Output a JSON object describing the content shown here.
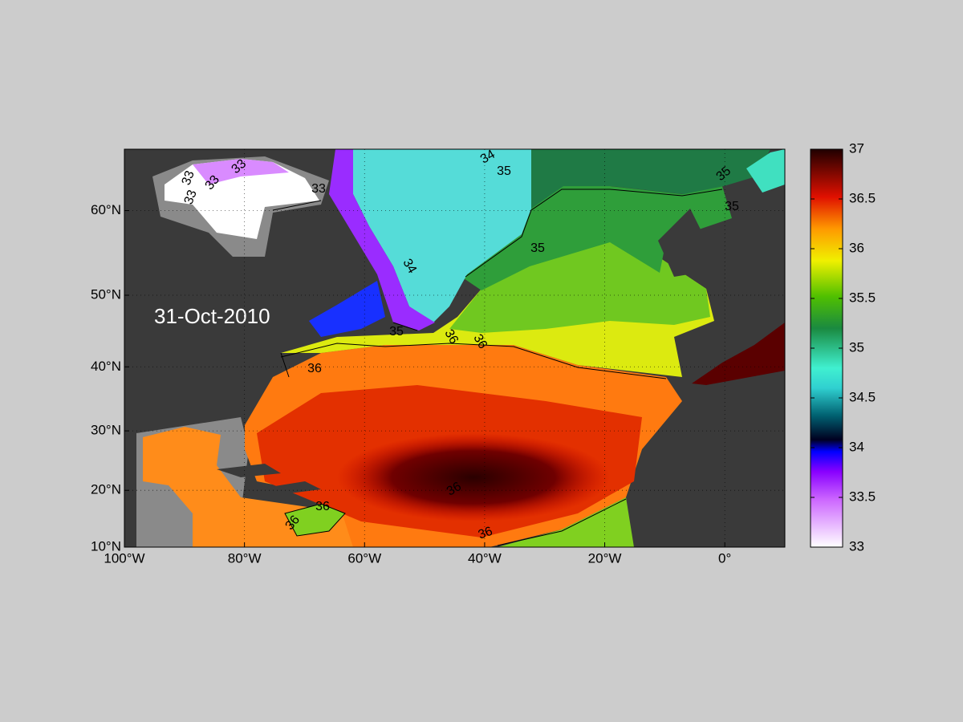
{
  "chart_data": {
    "type": "map",
    "annotation": "31-Oct-2010",
    "xlim": [
      -100,
      10
    ],
    "xticks": [
      {
        "value": -100,
        "label": "100°W"
      },
      {
        "value": -80,
        "label": "80°W"
      },
      {
        "value": -60,
        "label": "60°W"
      },
      {
        "value": -40,
        "label": "40°W"
      },
      {
        "value": -20,
        "label": "20°W"
      },
      {
        "value": 0,
        "label": "0°"
      }
    ],
    "ylim": [
      10,
      66
    ],
    "yticks": [
      {
        "value": 10,
        "label": "10°N"
      },
      {
        "value": 20,
        "label": "20°N"
      },
      {
        "value": 30,
        "label": "30°N"
      },
      {
        "value": 40,
        "label": "40°N"
      },
      {
        "value": 50,
        "label": "50°N"
      },
      {
        "value": 60,
        "label": "60°N"
      }
    ],
    "grid": true,
    "colorbar": {
      "lim": [
        33,
        37
      ],
      "ticks": [
        33,
        33.5,
        34,
        34.5,
        35,
        35.5,
        36,
        36.5,
        37
      ]
    },
    "contour_labels": [
      33,
      33,
      33,
      33,
      33,
      34,
      34,
      35,
      35,
      35,
      35,
      35,
      36,
      36,
      36,
      36,
      36,
      36,
      36
    ]
  }
}
